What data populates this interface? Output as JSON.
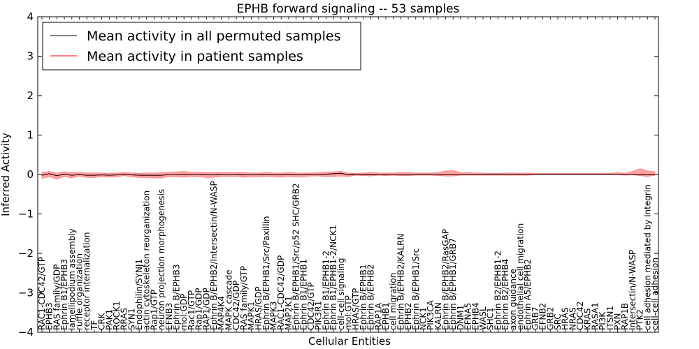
{
  "chart_data": {
    "type": "line",
    "title": "EPHB forward signaling -- 53 samples",
    "xlabel": "Cellular Entities",
    "ylabel": "Inferred Activity",
    "ylim": [
      -4,
      4
    ],
    "yticks": [
      -4,
      -3,
      -2,
      -1,
      0,
      1,
      2,
      3,
      4
    ],
    "ytick_labels": [
      "−4",
      "−3",
      "−2",
      "−1",
      "0",
      "1",
      "2",
      "3",
      "4"
    ],
    "grid": false,
    "legend_position": "top-left",
    "colors": {
      "permuted": "#000000",
      "patient": "#ff0000",
      "band": "#ff6666"
    },
    "categories": [
      "RAC1-CDC42/GTP",
      "EPHB3",
      "RAS family/GDP",
      "Ephrin B1/EPHB3",
      "lamellipodium assembly",
      "ruffle organization",
      "receptor internalization",
      "TF",
      "CRK",
      "PAK1",
      "ROCK1",
      "RRAS",
      "SYN1",
      "Endophilin/SYNJ1",
      "actin cytoskeleton reorganization",
      "Rap1/GTP",
      "neuron projection morphogenesis",
      "EFNB3",
      "Ephrin B/EPHB3",
      "mol:GDP",
      "Rac1/GTP",
      "Rap1/GDP",
      "RAP1/GDP",
      "Ephrin B/EPHB2/Intersectin/N-WASP",
      "MAP4K4",
      "MAPK cascade",
      "CDC42/GDP",
      "RAS family/GTP",
      "MAPK1",
      "HRAS/GDP",
      "Ephrin B/EPHB1/Src/Paxillin",
      "MAPK3",
      "RAC1-CDC42/GDP",
      "MAP2K1",
      "Ephrin B/EPHB1/Src/p52 SHC/GRB2",
      "Ephrin B1/EPHB1",
      "CDC42/GTP",
      "PIK3R1",
      "Ephrin B1/EPHB1-2",
      "Ephrin B1/EPHB1-2/NCK1",
      "cell-cell signaling",
      "mol:GTP",
      "HRAS/GTP",
      "Ephrin B/EPHB1",
      "Ephrin B/EPHB2",
      "RAP1A",
      "EPHB1",
      "cell migration",
      "Ephrin B/EPHB2/KALRN",
      "EPHB2",
      "Ephrin B/EPHB1/Src",
      "NCK1",
      "PIK3CA",
      "KALRN",
      "Ephrin B/EPHB2/RasGAP",
      "Ephrin B/EPHB1/GRB7",
      "DNM1",
      "EFNA5",
      "EPHB4",
      "WASL",
      "SHC1",
      "Ephrin B2/EPHB1-2",
      "Ephrin B2/EPHB4",
      "axon guidance",
      "endothelial cell migration",
      "Ephrin A5/EPHB2",
      "GRB7",
      "EFNB2",
      "GRB2",
      "SRC",
      "HRAS",
      "NRAS",
      "CDC42",
      "KRAS",
      "RASA1",
      "PI3K",
      "ITSN1",
      "PXN",
      "RAP1B",
      "Intersectin/N-WASP",
      "PTK2",
      "cell adhesion mediated by integrin",
      "cell-cell adhesion"
    ],
    "series": [
      {
        "name": "Mean activity in all permuted samples",
        "color": "#000000",
        "values": [
          -0.02,
          0.02,
          -0.03,
          0.01,
          -0.02,
          0.0,
          -0.02,
          -0.02,
          -0.01,
          -0.02,
          -0.01,
          0.01,
          -0.01,
          -0.02,
          -0.02,
          -0.02,
          -0.02,
          0.0,
          0.0,
          0.01,
          0.0,
          0.0,
          -0.01,
          -0.01,
          0.0,
          0.0,
          0.0,
          -0.01,
          -0.01,
          -0.01,
          0.0,
          -0.01,
          -0.01,
          0.0,
          -0.01,
          -0.01,
          0.0,
          0.0,
          0.01,
          0.02,
          0.03,
          -0.01,
          0.0,
          0.0,
          0.01,
          0.0,
          0.0,
          0.0,
          0.0,
          0.0,
          0.0,
          0.0,
          0.0,
          0.0,
          0.0,
          0.0,
          0.0,
          0.0,
          0.0,
          0.0,
          0.0,
          0.0,
          0.0,
          0.0,
          0.0,
          0.0,
          0.0,
          0.0,
          0.0,
          0.0,
          0.0,
          0.0,
          0.0,
          0.0,
          0.0,
          0.0,
          0.0,
          0.0,
          0.0,
          0.0,
          0.0,
          -0.01,
          0.0
        ],
        "lower": [
          -0.1,
          -0.06,
          -0.12,
          -0.05,
          -0.09,
          -0.04,
          -0.08,
          -0.08,
          -0.06,
          -0.07,
          -0.06,
          -0.03,
          -0.06,
          -0.08,
          -0.08,
          -0.09,
          -0.09,
          -0.05,
          -0.06,
          -0.07,
          -0.05,
          -0.06,
          -0.08,
          -0.07,
          -0.05,
          -0.05,
          -0.05,
          -0.07,
          -0.06,
          -0.06,
          -0.05,
          -0.06,
          -0.07,
          -0.05,
          -0.06,
          -0.06,
          -0.04,
          -0.04,
          -0.05,
          -0.05,
          -0.04,
          -0.05,
          -0.02,
          -0.03,
          -0.04,
          -0.02,
          -0.03,
          -0.02,
          -0.03,
          -0.03,
          -0.02,
          -0.02,
          -0.02,
          -0.03,
          -0.04,
          -0.04,
          -0.02,
          -0.02,
          -0.02,
          -0.02,
          -0.02,
          -0.02,
          -0.02,
          -0.02,
          -0.02,
          -0.02,
          -0.01,
          -0.01,
          -0.01,
          -0.01,
          -0.01,
          -0.01,
          -0.01,
          -0.01,
          -0.01,
          -0.01,
          -0.01,
          -0.01,
          -0.02,
          -0.01,
          -0.03,
          -0.05,
          -0.02
        ],
        "upper": [
          0.05,
          0.08,
          0.04,
          0.07,
          0.05,
          0.05,
          0.04,
          0.04,
          0.04,
          0.03,
          0.04,
          0.05,
          0.04,
          0.03,
          0.04,
          0.04,
          0.05,
          0.06,
          0.07,
          0.08,
          0.06,
          0.06,
          0.05,
          0.05,
          0.05,
          0.05,
          0.05,
          0.05,
          0.04,
          0.04,
          0.05,
          0.04,
          0.04,
          0.05,
          0.04,
          0.04,
          0.04,
          0.05,
          0.06,
          0.07,
          0.08,
          0.04,
          0.03,
          0.04,
          0.05,
          0.04,
          0.04,
          0.04,
          0.05,
          0.05,
          0.04,
          0.04,
          0.04,
          0.05,
          0.09,
          0.1,
          0.05,
          0.05,
          0.04,
          0.04,
          0.03,
          0.03,
          0.04,
          0.04,
          0.03,
          0.04,
          0.03,
          0.03,
          0.03,
          0.03,
          0.03,
          0.03,
          0.03,
          0.03,
          0.03,
          0.03,
          0.03,
          0.05,
          0.03,
          0.08,
          0.15,
          0.09,
          0.07
        ]
      },
      {
        "name": "Mean activity in patient samples",
        "color": "#ff0000",
        "values": [
          -0.02,
          0.02,
          -0.03,
          0.01,
          -0.02,
          0.0,
          -0.02,
          -0.02,
          -0.01,
          -0.02,
          -0.01,
          0.01,
          -0.01,
          -0.02,
          -0.02,
          -0.02,
          -0.02,
          0.0,
          0.0,
          0.01,
          0.0,
          0.0,
          -0.01,
          -0.01,
          0.0,
          0.0,
          0.0,
          -0.01,
          -0.01,
          -0.01,
          0.0,
          -0.01,
          -0.01,
          0.0,
          -0.01,
          -0.01,
          0.0,
          0.0,
          0.01,
          0.02,
          0.03,
          -0.01,
          0.0,
          0.0,
          0.01,
          0.0,
          0.0,
          0.0,
          0.0,
          0.0,
          0.0,
          0.0,
          0.0,
          0.0,
          0.0,
          0.0,
          0.0,
          0.0,
          0.0,
          0.0,
          0.0,
          0.0,
          0.0,
          0.0,
          0.0,
          0.0,
          0.0,
          0.0,
          0.0,
          0.0,
          0.0,
          0.0,
          0.0,
          0.0,
          0.0,
          0.0,
          0.0,
          0.0,
          0.0,
          0.0,
          0.0,
          -0.01,
          0.0
        ]
      }
    ]
  }
}
